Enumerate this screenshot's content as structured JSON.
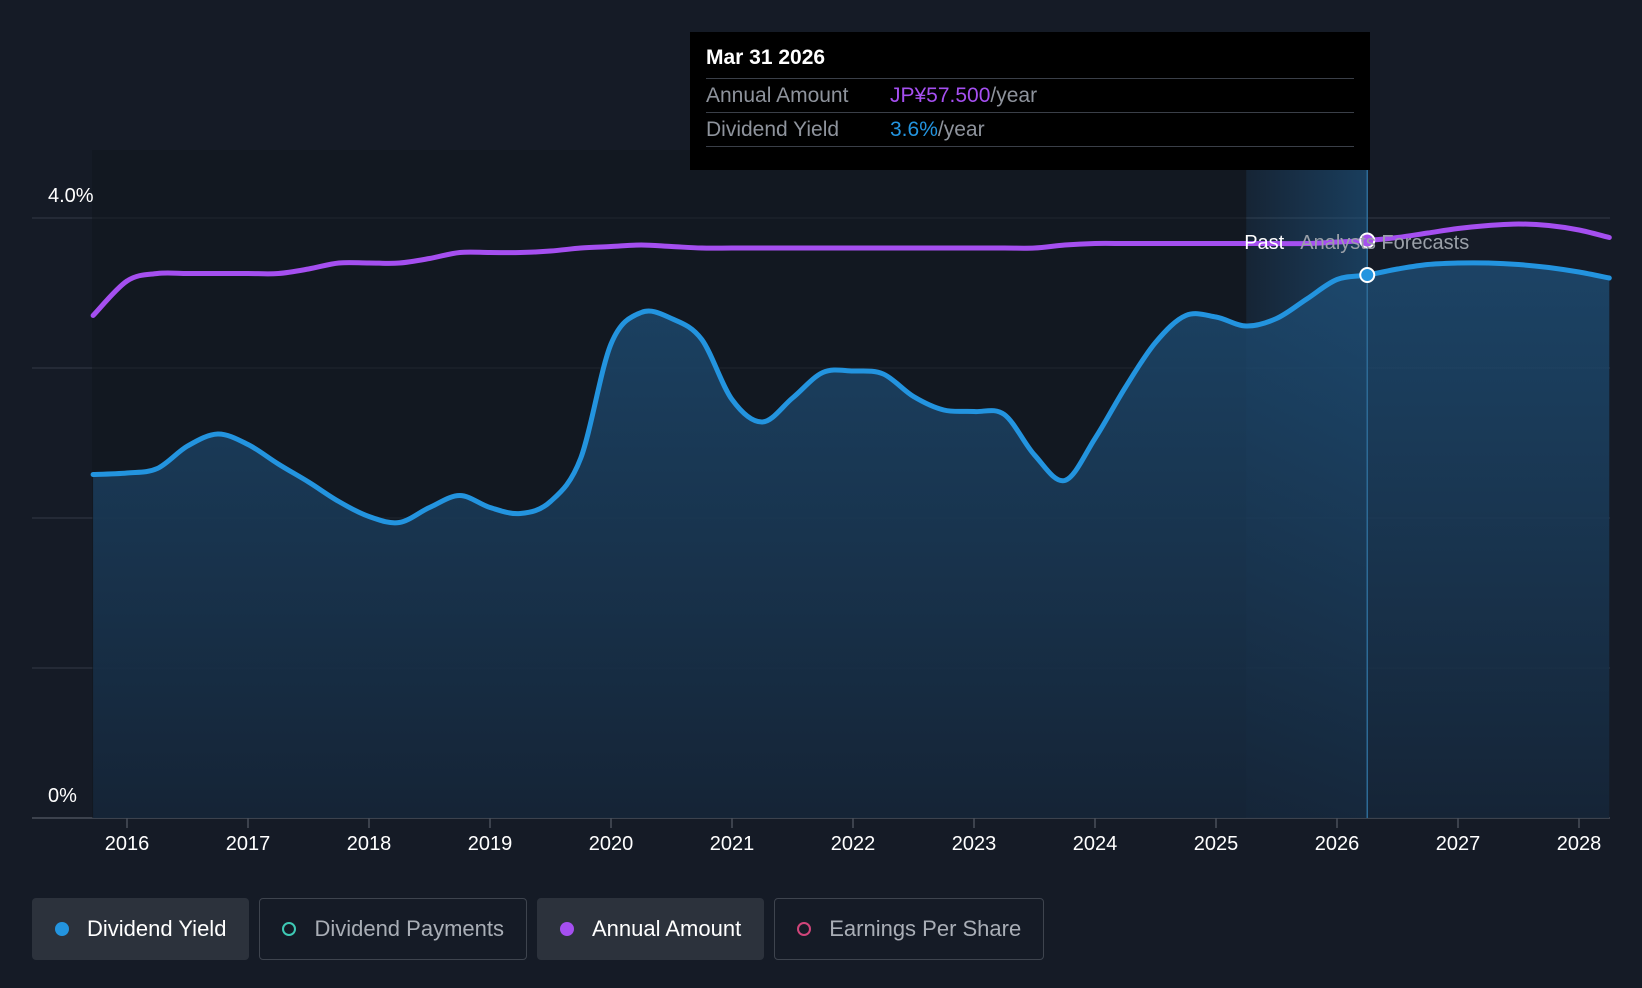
{
  "chart_data": {
    "type": "line",
    "y_axis": {
      "min": 0,
      "max": 4.0,
      "unit": "%",
      "tick_labels": [
        "4.0%",
        "0%"
      ]
    },
    "x_axis": {
      "tick_labels": [
        "2016",
        "2017",
        "2018",
        "2019",
        "2020",
        "2021",
        "2022",
        "2023",
        "2024",
        "2025",
        "2026",
        "2027",
        "2028"
      ]
    },
    "grid": true,
    "past_label": "Past",
    "forecast_label": "Analysts Forecasts",
    "series": [
      {
        "name": "Dividend Yield",
        "color": "#2394df",
        "x": [
          2015.72,
          2016.0,
          2016.25,
          2016.5,
          2016.75,
          2017.0,
          2017.25,
          2017.5,
          2017.75,
          2018.0,
          2018.25,
          2018.5,
          2018.75,
          2019.0,
          2019.25,
          2019.5,
          2019.75,
          2020.0,
          2020.25,
          2020.5,
          2020.75,
          2021.0,
          2021.25,
          2021.5,
          2021.75,
          2022.0,
          2022.25,
          2022.5,
          2022.75,
          2023.0,
          2023.25,
          2023.5,
          2023.75,
          2024.0,
          2024.25,
          2024.5,
          2024.75,
          2025.0,
          2025.25,
          2025.5,
          2025.75,
          2026.0,
          2026.25,
          2026.5,
          2026.75,
          2027.0,
          2027.25,
          2027.5,
          2027.75,
          2028.0,
          2028.25
        ],
        "values": [
          2.29,
          2.3,
          2.33,
          2.48,
          2.56,
          2.49,
          2.36,
          2.24,
          2.11,
          2.01,
          1.97,
          2.07,
          2.15,
          2.07,
          2.03,
          2.11,
          2.4,
          3.16,
          3.37,
          3.33,
          3.19,
          2.79,
          2.64,
          2.8,
          2.97,
          2.98,
          2.96,
          2.81,
          2.72,
          2.71,
          2.69,
          2.42,
          2.25,
          2.53,
          2.87,
          3.17,
          3.35,
          3.34,
          3.28,
          3.33,
          3.46,
          3.59,
          3.62,
          3.66,
          3.69,
          3.7,
          3.7,
          3.69,
          3.67,
          3.64,
          3.6
        ]
      },
      {
        "name": "Annual Amount",
        "color": "#a54ff0",
        "x": [
          2015.72,
          2016.0,
          2016.25,
          2016.5,
          2016.75,
          2017.0,
          2017.25,
          2017.5,
          2017.75,
          2018.0,
          2018.25,
          2018.5,
          2018.75,
          2019.0,
          2019.25,
          2019.5,
          2019.75,
          2020.0,
          2020.25,
          2020.5,
          2020.75,
          2021.0,
          2021.25,
          2021.5,
          2021.75,
          2022.0,
          2022.25,
          2022.5,
          2022.75,
          2023.0,
          2023.25,
          2023.5,
          2023.75,
          2024.0,
          2024.25,
          2024.5,
          2024.75,
          2025.0,
          2025.25,
          2025.5,
          2025.75,
          2026.0,
          2026.25,
          2026.5,
          2026.75,
          2027.0,
          2027.25,
          2027.5,
          2027.75,
          2028.0,
          2028.25
        ],
        "values": [
          3.35,
          3.58,
          3.63,
          3.63,
          3.63,
          3.63,
          3.63,
          3.66,
          3.7,
          3.7,
          3.7,
          3.73,
          3.77,
          3.77,
          3.77,
          3.78,
          3.8,
          3.81,
          3.82,
          3.81,
          3.8,
          3.8,
          3.8,
          3.8,
          3.8,
          3.8,
          3.8,
          3.8,
          3.8,
          3.8,
          3.8,
          3.8,
          3.82,
          3.83,
          3.83,
          3.83,
          3.83,
          3.83,
          3.83,
          3.83,
          3.83,
          3.84,
          3.85,
          3.87,
          3.9,
          3.93,
          3.95,
          3.96,
          3.95,
          3.92,
          3.87
        ]
      }
    ],
    "highlight_x": 2026.25,
    "highlight_points": {
      "dividend_yield": 3.62,
      "annual_amount": 3.85
    }
  },
  "tooltip": {
    "date": "Mar 31 2026",
    "rows": [
      {
        "label": "Annual Amount",
        "value": "JP¥57.500",
        "unit": "/year",
        "color": "#a54ff0"
      },
      {
        "label": "Dividend Yield",
        "value": "3.6%",
        "unit": "/year",
        "color": "#2394df"
      }
    ]
  },
  "legend": [
    {
      "label": "Dividend Yield",
      "active": true,
      "color": "#2394df"
    },
    {
      "label": "Dividend Payments",
      "active": false,
      "color": "#3ec9b4"
    },
    {
      "label": "Annual Amount",
      "active": true,
      "color": "#a54ff0"
    },
    {
      "label": "Earnings Per Share",
      "active": false,
      "color": "#d0457a"
    }
  ]
}
